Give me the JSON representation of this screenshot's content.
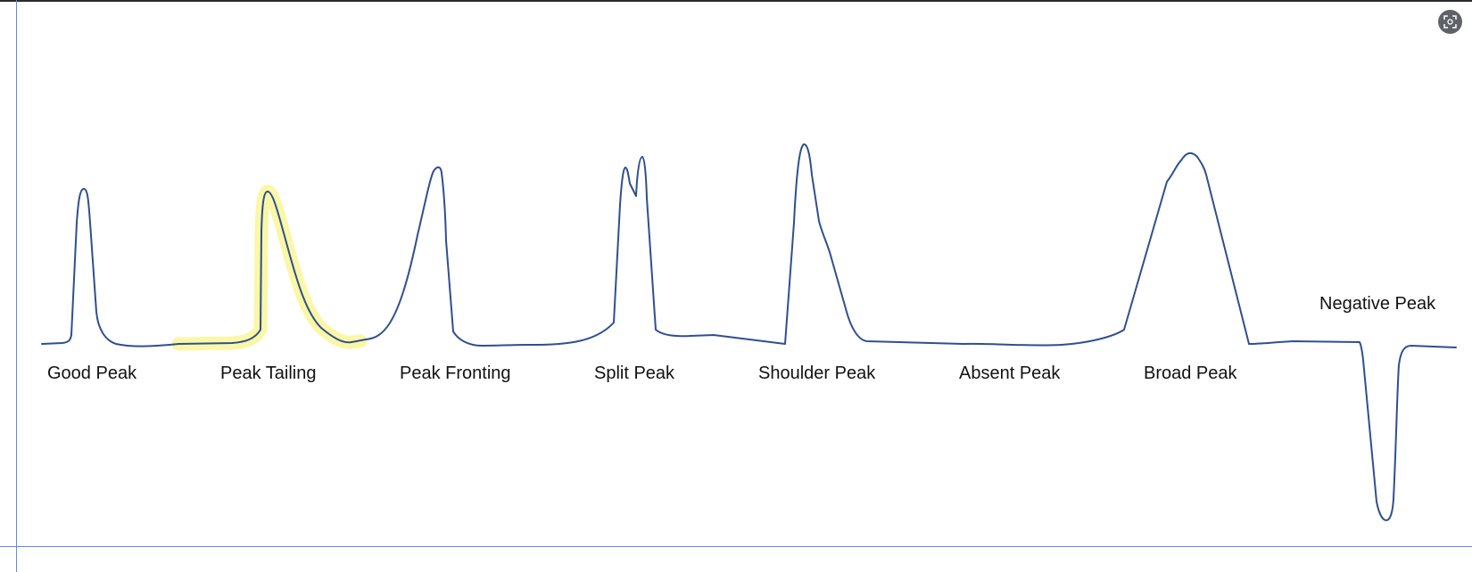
{
  "diagram": {
    "labels": {
      "good_peak": "Good Peak",
      "peak_tailing": "Peak Tailing",
      "peak_fronting": "Peak Fronting",
      "split_peak": "Split Peak",
      "shoulder_peak": "Shoulder Peak",
      "absent_peak": "Absent Peak",
      "broad_peak": "Broad Peak",
      "negative_peak": "Negative Peak"
    },
    "colors": {
      "trace": "#2f4f8f",
      "highlight": "#f8f48a",
      "guides": "#5b8dd9"
    },
    "highlighted_item": "peak_tailing"
  },
  "toolbar": {
    "frame_button_icon": "capture-frame-icon"
  }
}
